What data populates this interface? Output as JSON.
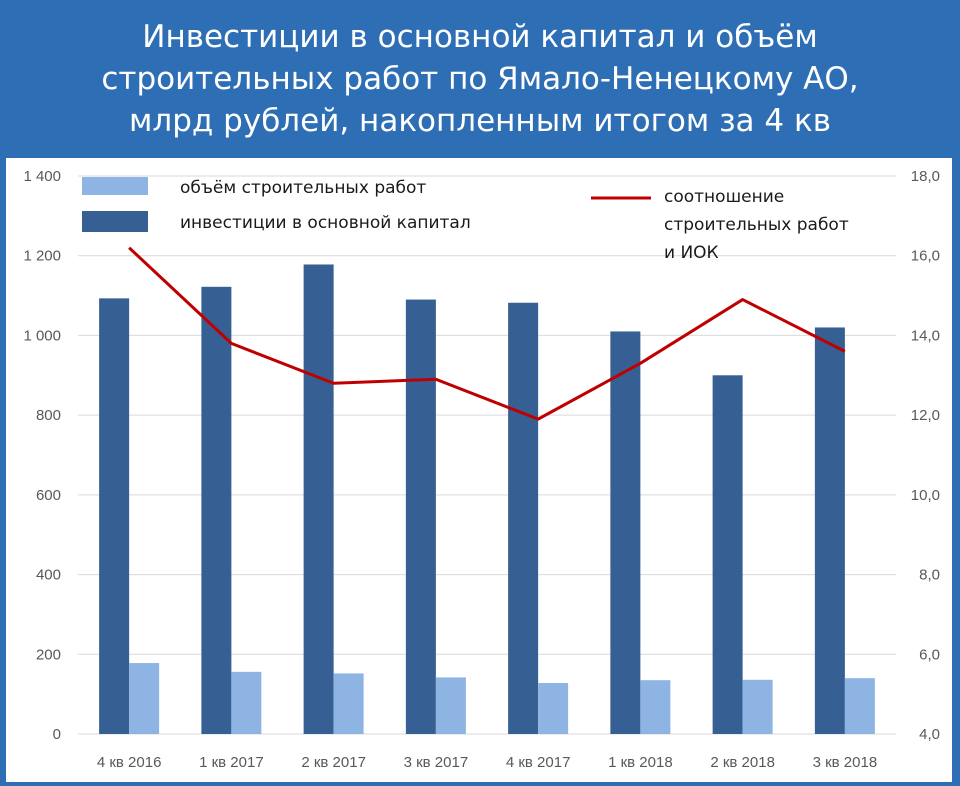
{
  "title": {
    "line1": "Инвестиции в основной капитал и объём",
    "line2": "строительных работ по Ямало-Ненецкому АО,",
    "line3": "млрд рублей, накопленным итогом за 4 кв"
  },
  "colors": {
    "background": "#2e6eb5",
    "investment_bar": "#365f93",
    "construction_bar": "#8eb4e3",
    "ratio_line": "#c00000"
  },
  "chart_data": {
    "type": "bar",
    "categories": [
      "4 кв 2016",
      "1 кв 2017",
      "2 кв 2017",
      "3 кв 2017",
      "4 кв 2017",
      "1 кв 2018",
      "2 кв 2018",
      "3 кв 2018"
    ],
    "series": [
      {
        "name": "инвестиции в основной капитал",
        "type": "bar",
        "axis": "left",
        "values": [
          1093,
          1122,
          1178,
          1090,
          1082,
          1010,
          900,
          1020
        ]
      },
      {
        "name": "объём строительных работ",
        "type": "bar",
        "axis": "left",
        "values": [
          178,
          156,
          152,
          142,
          128,
          135,
          136,
          140
        ]
      },
      {
        "name_lines": [
          "соотношение",
          "строительных работ",
          "и ИОК"
        ],
        "type": "line",
        "axis": "right",
        "values": [
          16.2,
          13.8,
          12.8,
          12.9,
          11.9,
          13.3,
          14.9,
          13.6
        ]
      }
    ],
    "ylim": [
      0,
      1400
    ],
    "yticks": [
      "0",
      "200",
      "400",
      "600",
      "800",
      "1 000",
      "1 200",
      "1 400"
    ],
    "y2lim": [
      4,
      18
    ],
    "y2ticks": [
      "4,0",
      "6,0",
      "8,0",
      "10,0",
      "12,0",
      "14,0",
      "16,0",
      "18,0"
    ],
    "grid": true,
    "legend": "top"
  }
}
